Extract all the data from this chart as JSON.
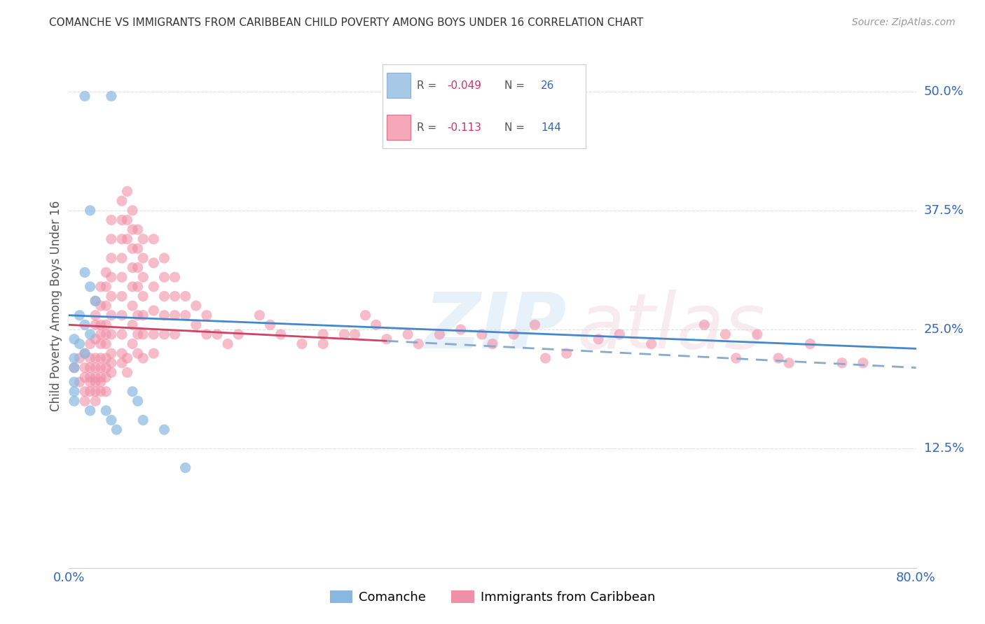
{
  "title": "COMANCHE VS IMMIGRANTS FROM CARIBBEAN CHILD POVERTY AMONG BOYS UNDER 16 CORRELATION CHART",
  "source": "Source: ZipAtlas.com",
  "ylabel": "Child Poverty Among Boys Under 16",
  "ytick_labels": [
    "12.5%",
    "25.0%",
    "37.5%",
    "50.0%"
  ],
  "legend1_color": "#a8c8e8",
  "legend2_color": "#f4a8b8",
  "comanche_color": "#88b8e0",
  "caribbean_color": "#f090a8",
  "comanche_points": [
    [
      0.015,
      0.495
    ],
    [
      0.04,
      0.495
    ],
    [
      0.02,
      0.375
    ],
    [
      0.015,
      0.31
    ],
    [
      0.02,
      0.295
    ],
    [
      0.025,
      0.28
    ],
    [
      0.01,
      0.265
    ],
    [
      0.015,
      0.255
    ],
    [
      0.02,
      0.245
    ],
    [
      0.005,
      0.24
    ],
    [
      0.01,
      0.235
    ],
    [
      0.015,
      0.225
    ],
    [
      0.005,
      0.22
    ],
    [
      0.005,
      0.21
    ],
    [
      0.005,
      0.195
    ],
    [
      0.005,
      0.185
    ],
    [
      0.005,
      0.175
    ],
    [
      0.02,
      0.165
    ],
    [
      0.035,
      0.165
    ],
    [
      0.04,
      0.155
    ],
    [
      0.045,
      0.145
    ],
    [
      0.06,
      0.185
    ],
    [
      0.065,
      0.175
    ],
    [
      0.07,
      0.155
    ],
    [
      0.09,
      0.145
    ],
    [
      0.11,
      0.105
    ]
  ],
  "caribbean_points": [
    [
      0.005,
      0.21
    ],
    [
      0.01,
      0.22
    ],
    [
      0.01,
      0.195
    ],
    [
      0.015,
      0.225
    ],
    [
      0.015,
      0.21
    ],
    [
      0.015,
      0.2
    ],
    [
      0.015,
      0.185
    ],
    [
      0.015,
      0.175
    ],
    [
      0.02,
      0.235
    ],
    [
      0.02,
      0.22
    ],
    [
      0.02,
      0.21
    ],
    [
      0.02,
      0.2
    ],
    [
      0.02,
      0.195
    ],
    [
      0.02,
      0.185
    ],
    [
      0.025,
      0.28
    ],
    [
      0.025,
      0.265
    ],
    [
      0.025,
      0.255
    ],
    [
      0.025,
      0.24
    ],
    [
      0.025,
      0.22
    ],
    [
      0.025,
      0.21
    ],
    [
      0.025,
      0.2
    ],
    [
      0.025,
      0.195
    ],
    [
      0.025,
      0.185
    ],
    [
      0.025,
      0.175
    ],
    [
      0.03,
      0.295
    ],
    [
      0.03,
      0.275
    ],
    [
      0.03,
      0.255
    ],
    [
      0.03,
      0.245
    ],
    [
      0.03,
      0.235
    ],
    [
      0.03,
      0.22
    ],
    [
      0.03,
      0.21
    ],
    [
      0.03,
      0.2
    ],
    [
      0.03,
      0.195
    ],
    [
      0.03,
      0.185
    ],
    [
      0.035,
      0.31
    ],
    [
      0.035,
      0.295
    ],
    [
      0.035,
      0.275
    ],
    [
      0.035,
      0.255
    ],
    [
      0.035,
      0.245
    ],
    [
      0.035,
      0.235
    ],
    [
      0.035,
      0.22
    ],
    [
      0.035,
      0.21
    ],
    [
      0.035,
      0.2
    ],
    [
      0.035,
      0.185
    ],
    [
      0.04,
      0.365
    ],
    [
      0.04,
      0.345
    ],
    [
      0.04,
      0.325
    ],
    [
      0.04,
      0.305
    ],
    [
      0.04,
      0.285
    ],
    [
      0.04,
      0.265
    ],
    [
      0.04,
      0.245
    ],
    [
      0.04,
      0.225
    ],
    [
      0.04,
      0.215
    ],
    [
      0.04,
      0.205
    ],
    [
      0.05,
      0.385
    ],
    [
      0.05,
      0.365
    ],
    [
      0.05,
      0.345
    ],
    [
      0.05,
      0.325
    ],
    [
      0.05,
      0.305
    ],
    [
      0.05,
      0.285
    ],
    [
      0.05,
      0.265
    ],
    [
      0.05,
      0.245
    ],
    [
      0.05,
      0.225
    ],
    [
      0.05,
      0.215
    ],
    [
      0.055,
      0.395
    ],
    [
      0.055,
      0.365
    ],
    [
      0.055,
      0.345
    ],
    [
      0.055,
      0.22
    ],
    [
      0.055,
      0.205
    ],
    [
      0.06,
      0.375
    ],
    [
      0.06,
      0.355
    ],
    [
      0.06,
      0.335
    ],
    [
      0.06,
      0.315
    ],
    [
      0.06,
      0.295
    ],
    [
      0.06,
      0.275
    ],
    [
      0.06,
      0.255
    ],
    [
      0.06,
      0.235
    ],
    [
      0.065,
      0.355
    ],
    [
      0.065,
      0.335
    ],
    [
      0.065,
      0.315
    ],
    [
      0.065,
      0.295
    ],
    [
      0.065,
      0.265
    ],
    [
      0.065,
      0.245
    ],
    [
      0.065,
      0.225
    ],
    [
      0.07,
      0.345
    ],
    [
      0.07,
      0.325
    ],
    [
      0.07,
      0.305
    ],
    [
      0.07,
      0.285
    ],
    [
      0.07,
      0.265
    ],
    [
      0.07,
      0.245
    ],
    [
      0.07,
      0.22
    ],
    [
      0.08,
      0.345
    ],
    [
      0.08,
      0.32
    ],
    [
      0.08,
      0.295
    ],
    [
      0.08,
      0.27
    ],
    [
      0.08,
      0.245
    ],
    [
      0.08,
      0.225
    ],
    [
      0.09,
      0.325
    ],
    [
      0.09,
      0.305
    ],
    [
      0.09,
      0.285
    ],
    [
      0.09,
      0.265
    ],
    [
      0.09,
      0.245
    ],
    [
      0.1,
      0.305
    ],
    [
      0.1,
      0.285
    ],
    [
      0.1,
      0.265
    ],
    [
      0.1,
      0.245
    ],
    [
      0.11,
      0.285
    ],
    [
      0.11,
      0.265
    ],
    [
      0.12,
      0.275
    ],
    [
      0.12,
      0.255
    ],
    [
      0.13,
      0.265
    ],
    [
      0.13,
      0.245
    ],
    [
      0.14,
      0.245
    ],
    [
      0.15,
      0.235
    ],
    [
      0.16,
      0.245
    ],
    [
      0.18,
      0.265
    ],
    [
      0.19,
      0.255
    ],
    [
      0.2,
      0.245
    ],
    [
      0.22,
      0.235
    ],
    [
      0.24,
      0.245
    ],
    [
      0.24,
      0.235
    ],
    [
      0.26,
      0.245
    ],
    [
      0.27,
      0.245
    ],
    [
      0.28,
      0.265
    ],
    [
      0.29,
      0.255
    ],
    [
      0.3,
      0.24
    ],
    [
      0.32,
      0.245
    ],
    [
      0.33,
      0.235
    ],
    [
      0.35,
      0.245
    ],
    [
      0.37,
      0.25
    ],
    [
      0.39,
      0.245
    ],
    [
      0.4,
      0.235
    ],
    [
      0.42,
      0.245
    ],
    [
      0.44,
      0.255
    ],
    [
      0.45,
      0.22
    ],
    [
      0.47,
      0.225
    ],
    [
      0.5,
      0.24
    ],
    [
      0.52,
      0.245
    ],
    [
      0.55,
      0.235
    ],
    [
      0.6,
      0.255
    ],
    [
      0.62,
      0.245
    ],
    [
      0.63,
      0.22
    ],
    [
      0.65,
      0.245
    ],
    [
      0.67,
      0.22
    ],
    [
      0.68,
      0.215
    ],
    [
      0.7,
      0.235
    ],
    [
      0.73,
      0.215
    ],
    [
      0.75,
      0.215
    ]
  ],
  "xmin": 0.0,
  "xmax": 0.8,
  "ymin": 0.0,
  "ymax": 0.55,
  "yticks": [
    0.125,
    0.25,
    0.375,
    0.5
  ],
  "background_color": "#ffffff",
  "grid_color": "#e0e0e0",
  "comanche_trend": [
    0.0,
    0.8,
    0.265,
    0.23
  ],
  "caribbean_trend": [
    0.0,
    0.8,
    0.255,
    0.21
  ],
  "caribbean_trend_dashed_start": 0.3
}
